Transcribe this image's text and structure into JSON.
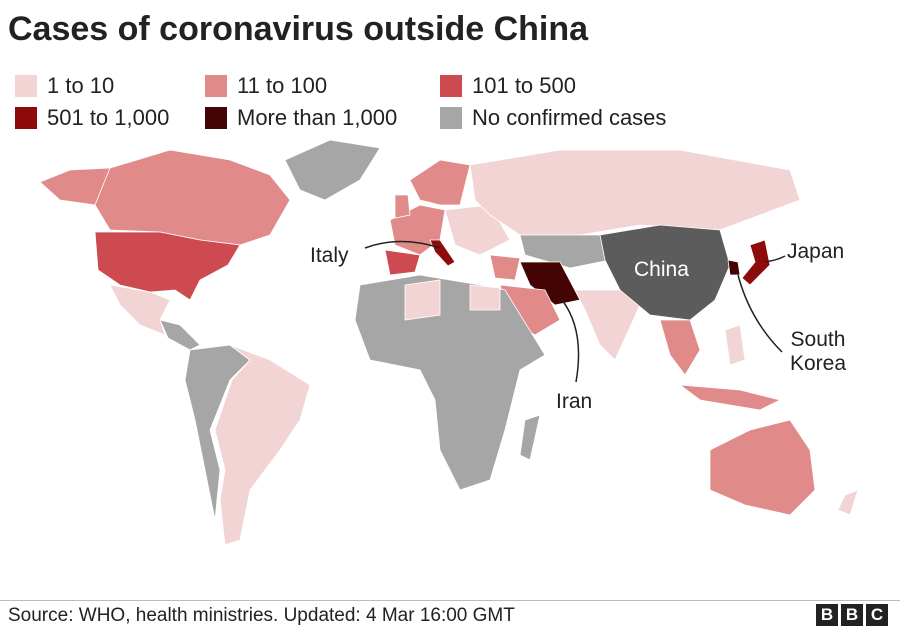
{
  "title": "Cases of coronavirus outside China",
  "legend": [
    {
      "label": "1 to 10",
      "color": "#f2d4d4"
    },
    {
      "label": "11 to 100",
      "color": "#e08a8a"
    },
    {
      "label": "101 to 500",
      "color": "#cd4a50"
    },
    {
      "label": "501 to 1,000",
      "color": "#8e0b0b"
    },
    {
      "label": "More than 1,000",
      "color": "#440404"
    },
    {
      "label": "No confirmed cases",
      "color": "#a6a6a6"
    }
  ],
  "labels": {
    "italy": "Italy",
    "china": "China",
    "japan": "Japan",
    "iran": "Iran",
    "south_korea": "South Korea"
  },
  "source": "Source: WHO, health ministries. Updated: 4 Mar 16:00 GMT",
  "logo": [
    "B",
    "B",
    "C"
  ]
}
